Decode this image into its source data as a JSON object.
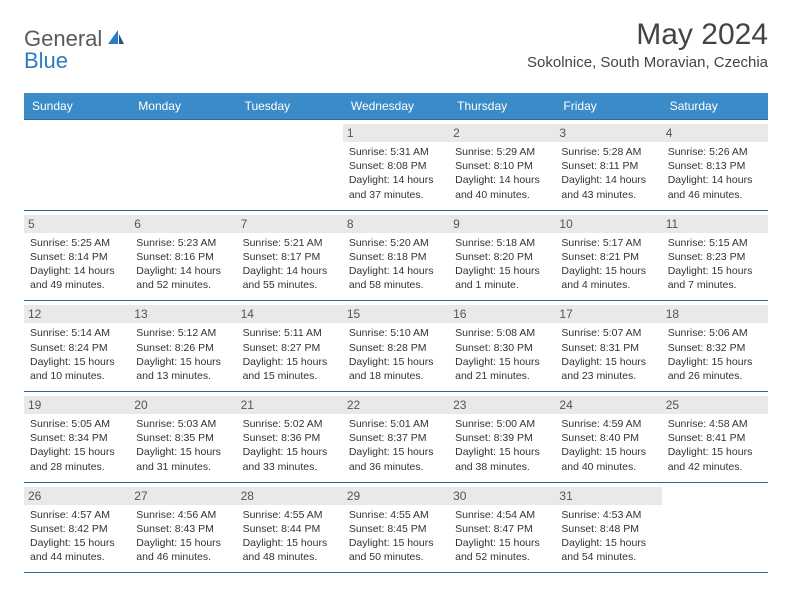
{
  "brand": {
    "general": "General",
    "blue": "Blue"
  },
  "title": "May 2024",
  "location": "Sokolnice, South Moravian, Czechia",
  "weekdays": [
    "Sunday",
    "Monday",
    "Tuesday",
    "Wednesday",
    "Thursday",
    "Friday",
    "Saturday"
  ],
  "colors": {
    "header_bg": "#3b8bc8",
    "header_text": "#ffffff",
    "border": "#2b6aa3",
    "daynum_bg": "#e9e9e9",
    "text": "#333333",
    "logo_blue": "#2b7cc0"
  },
  "typography": {
    "title_fontsize": 30,
    "location_fontsize": 15,
    "weekday_fontsize": 12,
    "daynum_fontsize": 12,
    "body_fontsize": 10.5
  },
  "first_weekday_index": 3,
  "days": [
    {
      "n": 1,
      "sr": "5:31 AM",
      "ss": "8:08 PM",
      "dl": "14 hours and 37 minutes."
    },
    {
      "n": 2,
      "sr": "5:29 AM",
      "ss": "8:10 PM",
      "dl": "14 hours and 40 minutes."
    },
    {
      "n": 3,
      "sr": "5:28 AM",
      "ss": "8:11 PM",
      "dl": "14 hours and 43 minutes."
    },
    {
      "n": 4,
      "sr": "5:26 AM",
      "ss": "8:13 PM",
      "dl": "14 hours and 46 minutes."
    },
    {
      "n": 5,
      "sr": "5:25 AM",
      "ss": "8:14 PM",
      "dl": "14 hours and 49 minutes."
    },
    {
      "n": 6,
      "sr": "5:23 AM",
      "ss": "8:16 PM",
      "dl": "14 hours and 52 minutes."
    },
    {
      "n": 7,
      "sr": "5:21 AM",
      "ss": "8:17 PM",
      "dl": "14 hours and 55 minutes."
    },
    {
      "n": 8,
      "sr": "5:20 AM",
      "ss": "8:18 PM",
      "dl": "14 hours and 58 minutes."
    },
    {
      "n": 9,
      "sr": "5:18 AM",
      "ss": "8:20 PM",
      "dl": "15 hours and 1 minute."
    },
    {
      "n": 10,
      "sr": "5:17 AM",
      "ss": "8:21 PM",
      "dl": "15 hours and 4 minutes."
    },
    {
      "n": 11,
      "sr": "5:15 AM",
      "ss": "8:23 PM",
      "dl": "15 hours and 7 minutes."
    },
    {
      "n": 12,
      "sr": "5:14 AM",
      "ss": "8:24 PM",
      "dl": "15 hours and 10 minutes."
    },
    {
      "n": 13,
      "sr": "5:12 AM",
      "ss": "8:26 PM",
      "dl": "15 hours and 13 minutes."
    },
    {
      "n": 14,
      "sr": "5:11 AM",
      "ss": "8:27 PM",
      "dl": "15 hours and 15 minutes."
    },
    {
      "n": 15,
      "sr": "5:10 AM",
      "ss": "8:28 PM",
      "dl": "15 hours and 18 minutes."
    },
    {
      "n": 16,
      "sr": "5:08 AM",
      "ss": "8:30 PM",
      "dl": "15 hours and 21 minutes."
    },
    {
      "n": 17,
      "sr": "5:07 AM",
      "ss": "8:31 PM",
      "dl": "15 hours and 23 minutes."
    },
    {
      "n": 18,
      "sr": "5:06 AM",
      "ss": "8:32 PM",
      "dl": "15 hours and 26 minutes."
    },
    {
      "n": 19,
      "sr": "5:05 AM",
      "ss": "8:34 PM",
      "dl": "15 hours and 28 minutes."
    },
    {
      "n": 20,
      "sr": "5:03 AM",
      "ss": "8:35 PM",
      "dl": "15 hours and 31 minutes."
    },
    {
      "n": 21,
      "sr": "5:02 AM",
      "ss": "8:36 PM",
      "dl": "15 hours and 33 minutes."
    },
    {
      "n": 22,
      "sr": "5:01 AM",
      "ss": "8:37 PM",
      "dl": "15 hours and 36 minutes."
    },
    {
      "n": 23,
      "sr": "5:00 AM",
      "ss": "8:39 PM",
      "dl": "15 hours and 38 minutes."
    },
    {
      "n": 24,
      "sr": "4:59 AM",
      "ss": "8:40 PM",
      "dl": "15 hours and 40 minutes."
    },
    {
      "n": 25,
      "sr": "4:58 AM",
      "ss": "8:41 PM",
      "dl": "15 hours and 42 minutes."
    },
    {
      "n": 26,
      "sr": "4:57 AM",
      "ss": "8:42 PM",
      "dl": "15 hours and 44 minutes."
    },
    {
      "n": 27,
      "sr": "4:56 AM",
      "ss": "8:43 PM",
      "dl": "15 hours and 46 minutes."
    },
    {
      "n": 28,
      "sr": "4:55 AM",
      "ss": "8:44 PM",
      "dl": "15 hours and 48 minutes."
    },
    {
      "n": 29,
      "sr": "4:55 AM",
      "ss": "8:45 PM",
      "dl": "15 hours and 50 minutes."
    },
    {
      "n": 30,
      "sr": "4:54 AM",
      "ss": "8:47 PM",
      "dl": "15 hours and 52 minutes."
    },
    {
      "n": 31,
      "sr": "4:53 AM",
      "ss": "8:48 PM",
      "dl": "15 hours and 54 minutes."
    }
  ],
  "labels": {
    "sunrise": "Sunrise:",
    "sunset": "Sunset:",
    "daylight": "Daylight:"
  }
}
